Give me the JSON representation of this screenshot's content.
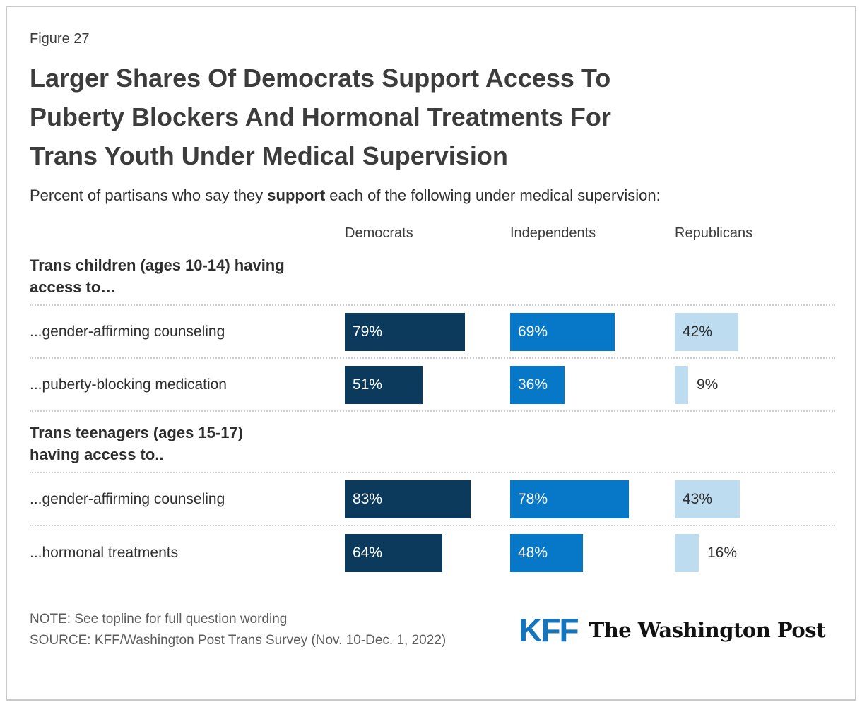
{
  "figure_label": "Figure 27",
  "title": "Larger Shares Of Democrats Support Access To\nPuberty Blockers And Hormonal Treatments For\nTrans Youth Under Medical Supervision",
  "subtitle": {
    "prefix": "Percent of partisans who say they ",
    "bold": "support",
    "suffix": " each of the following under medical supervision:"
  },
  "chart_data": {
    "type": "bar",
    "orientation": "horizontal",
    "value_suffix": "%",
    "xlim": [
      0,
      100
    ],
    "grid": false,
    "legend_position": "column-headers-top",
    "columns": [
      "Democrats",
      "Independents",
      "Republicans"
    ],
    "series_colors": [
      "#0b3a5c",
      "#0778c8",
      "#bedcf0"
    ],
    "groups": [
      {
        "header": "Trans children (ages 10-14) having\naccess to…",
        "rows": [
          {
            "label": "...gender-affirming counseling",
            "values": [
              79,
              69,
              42
            ]
          },
          {
            "label": "...puberty-blocking medication",
            "values": [
              51,
              36,
              9
            ]
          }
        ]
      },
      {
        "header": "Trans teenagers (ages 15-17)\nhaving access to..",
        "rows": [
          {
            "label": "...gender-affirming counseling",
            "values": [
              83,
              78,
              43
            ]
          },
          {
            "label": "...hormonal treatments",
            "values": [
              64,
              48,
              16
            ]
          }
        ]
      }
    ]
  },
  "footer": {
    "note": "NOTE: See topline for full question wording",
    "source": "SOURCE: KFF/Washington Post Trans Survey (Nov. 10-Dec. 1, 2022)",
    "kff_logo": "KFF",
    "wapo_logo": "The Washington Post"
  },
  "colors": {
    "democrats_bar": "#0b3a5c",
    "independents_bar": "#0778c8",
    "republicans_bar": "#bedcf0",
    "kff_blue": "#1475be",
    "dotted_divider": "#cccccc",
    "card_border": "#c9c9c9"
  }
}
